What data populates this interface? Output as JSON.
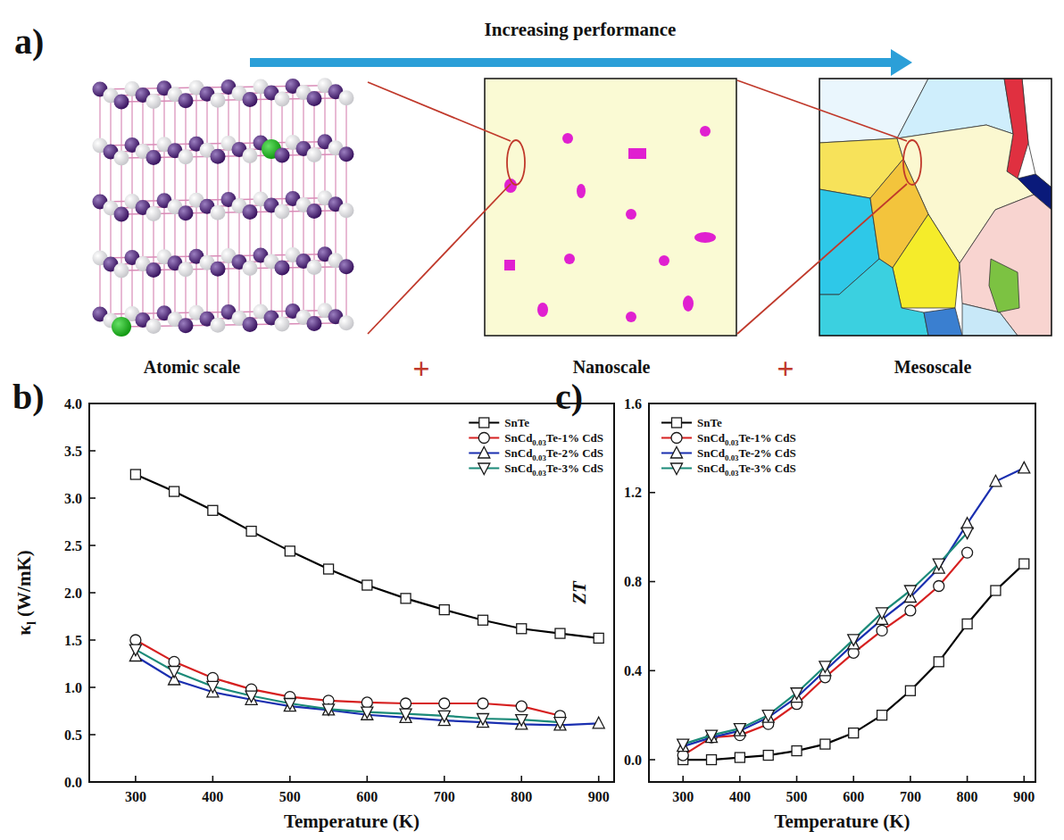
{
  "diagram": {
    "panel": "a)",
    "arrow_label": "Increasing performance",
    "scales": [
      "Atomic scale",
      "Nanoscale",
      "Mesoscale"
    ],
    "joiners": [
      "+",
      "+"
    ]
  },
  "chart_data": [
    {
      "panel": "b)",
      "type": "line",
      "x_label": "Temperature (K)",
      "y_label": "κl (W/mK)",
      "x": [
        300,
        350,
        400,
        450,
        500,
        550,
        600,
        650,
        700,
        750,
        800,
        850,
        900
      ],
      "xlim": [
        240,
        920
      ],
      "xticks": [
        300,
        400,
        500,
        600,
        700,
        800,
        900
      ],
      "ylim": [
        0,
        4
      ],
      "yticks": [
        {
          "value": 0,
          "label": "0.0"
        },
        {
          "value": 0.5,
          "label": "0.5"
        },
        {
          "value": 1,
          "label": "1.0"
        },
        {
          "value": 1.5,
          "label": "1.5"
        },
        {
          "value": 2,
          "label": "2.0"
        },
        {
          "value": 2.5,
          "label": "2.5"
        },
        {
          "value": 3,
          "label": "3.0"
        },
        {
          "value": 3.5,
          "label": "3.5"
        },
        {
          "value": 4,
          "label": "4.0"
        }
      ],
      "grid": false,
      "legend": "upper right",
      "series": [
        {
          "name": "SnTe",
          "color": "#000000",
          "marker": "square",
          "values": [
            3.25,
            3.07,
            2.87,
            2.65,
            2.44,
            2.25,
            2.08,
            1.94,
            1.82,
            1.71,
            1.62,
            1.57,
            1.52
          ]
        },
        {
          "name": "SnCd0.03Te-1% CdS",
          "color": "#d62020",
          "marker": "circle",
          "values": [
            1.5,
            1.27,
            1.1,
            0.98,
            0.9,
            0.86,
            0.84,
            0.83,
            0.83,
            0.83,
            0.8,
            0.7,
            null
          ]
        },
        {
          "name": "SnCd0.03Te-2% CdS",
          "color": "#1a2fb0",
          "marker": "triangle-up",
          "values": [
            1.33,
            1.08,
            0.95,
            0.87,
            0.8,
            0.76,
            0.71,
            0.68,
            0.65,
            0.63,
            0.61,
            0.6,
            0.62
          ]
        },
        {
          "name": "SnCd0.03Te-3% CdS",
          "color": "#1b8a78",
          "marker": "triangle-down",
          "values": [
            1.4,
            1.17,
            1.01,
            0.91,
            0.83,
            0.77,
            0.74,
            0.72,
            0.7,
            0.67,
            0.66,
            0.63,
            null
          ]
        }
      ]
    },
    {
      "panel": "c)",
      "type": "line",
      "x_label": "Temperature (K)",
      "y_label": "ZT",
      "x": [
        300,
        350,
        400,
        450,
        500,
        550,
        600,
        650,
        700,
        750,
        800,
        850,
        900
      ],
      "xlim": [
        240,
        920
      ],
      "xticks": [
        300,
        400,
        500,
        600,
        700,
        800,
        900
      ],
      "ylim": [
        -0.1,
        1.6
      ],
      "yticks": [
        {
          "value": 0,
          "label": "0.0"
        },
        {
          "value": 0.4,
          "label": "0.4"
        },
        {
          "value": 0.8,
          "label": "0.8"
        },
        {
          "value": 1.2,
          "label": "1.2"
        },
        {
          "value": 1.6,
          "label": "1.6"
        }
      ],
      "grid": false,
      "legend": "upper left",
      "series": [
        {
          "name": "SnTe",
          "color": "#000000",
          "marker": "square",
          "values": [
            0.0,
            0.0,
            0.01,
            0.02,
            0.04,
            0.07,
            0.12,
            0.2,
            0.31,
            0.44,
            0.61,
            0.76,
            0.88
          ]
        },
        {
          "name": "SnCd0.03Te-1% CdS",
          "color": "#d62020",
          "marker": "circle",
          "values": [
            0.02,
            0.1,
            0.11,
            0.16,
            0.25,
            0.37,
            0.48,
            0.58,
            0.67,
            0.78,
            0.93,
            null,
            null
          ]
        },
        {
          "name": "SnCd0.03Te-2% CdS",
          "color": "#1a2fb0",
          "marker": "triangle-up",
          "values": [
            0.06,
            0.1,
            0.13,
            0.19,
            0.28,
            0.4,
            0.52,
            0.63,
            0.73,
            0.86,
            1.06,
            1.25,
            1.31
          ]
        },
        {
          "name": "SnCd0.03Te-3% CdS",
          "color": "#1b8a78",
          "marker": "triangle-down",
          "values": [
            0.07,
            0.11,
            0.14,
            0.2,
            0.3,
            0.42,
            0.54,
            0.66,
            0.76,
            0.88,
            1.02,
            null,
            null
          ]
        }
      ]
    }
  ]
}
